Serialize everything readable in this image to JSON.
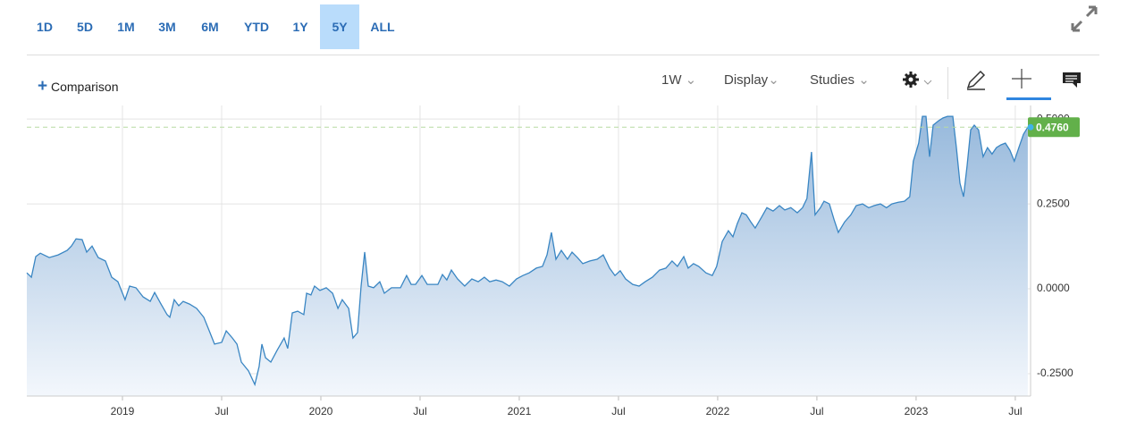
{
  "toolbar": {
    "ranges": [
      "1D",
      "5D",
      "1M",
      "3M",
      "6M",
      "YTD",
      "1Y",
      "5Y",
      "ALL"
    ],
    "selected": "5Y",
    "comparison": "Comparison",
    "interval": "1W",
    "display": "Display",
    "studies": "Studies"
  },
  "chart_data": {
    "type": "area",
    "color": "#3a86c3",
    "x": [
      2018.518,
      2018.541,
      2018.563,
      2018.586,
      2018.631,
      2018.676,
      2018.721,
      2018.743,
      2018.766,
      2018.797,
      2018.82,
      2018.847,
      2018.878,
      2018.914,
      2018.946,
      2018.977,
      2019.013,
      2019.036,
      2019.068,
      2019.104,
      2019.14,
      2019.162,
      2019.194,
      2019.225,
      2019.239,
      2019.261,
      2019.284,
      2019.306,
      2019.338,
      2019.374,
      2019.41,
      2019.441,
      2019.464,
      2019.5,
      2019.523,
      2019.554,
      2019.577,
      2019.599,
      2019.635,
      2019.667,
      2019.689,
      2019.703,
      2019.721,
      2019.748,
      2019.779,
      2019.815,
      2019.833,
      2019.856,
      2019.883,
      2019.914,
      2019.928,
      2019.95,
      2019.968,
      2019.995,
      2020.027,
      2020.059,
      2020.086,
      2020.108,
      2020.14,
      2020.162,
      2020.185,
      2020.203,
      2020.221,
      2020.239,
      2020.266,
      2020.297,
      2020.32,
      2020.356,
      2020.401,
      2020.432,
      2020.455,
      2020.477,
      2020.509,
      2020.536,
      2020.59,
      2020.613,
      2020.635,
      2020.658,
      2020.689,
      2020.725,
      2020.761,
      2020.793,
      2020.824,
      2020.851,
      2020.883,
      2020.914,
      2020.95,
      2020.986,
      2021.018,
      2021.05,
      2021.086,
      2021.117,
      2021.14,
      2021.162,
      2021.185,
      2021.212,
      2021.243,
      2021.266,
      2021.293,
      2021.32,
      2021.356,
      2021.392,
      2021.423,
      2021.455,
      2021.482,
      2021.509,
      2021.536,
      2021.572,
      2021.604,
      2021.635,
      2021.671,
      2021.707,
      2021.739,
      2021.77,
      2021.797,
      2021.829,
      2021.851,
      2021.878,
      2021.905,
      2021.941,
      2021.973,
      2021.995,
      2022.023,
      2022.054,
      2022.077,
      2022.099,
      2022.122,
      2022.144,
      2022.167,
      2022.189,
      2022.221,
      2022.248,
      2022.279,
      2022.311,
      2022.338,
      2022.369,
      2022.401,
      2022.428,
      2022.45,
      2022.473,
      2022.491,
      2022.518,
      2022.536,
      2022.563,
      2022.586,
      2022.608,
      2022.64,
      2022.671,
      2022.698,
      2022.73,
      2022.761,
      2022.788,
      2022.82,
      2022.851,
      2022.878,
      2022.91,
      2022.941,
      2022.968,
      2022.986,
      2023.013,
      2023.032,
      2023.05,
      2023.068,
      2023.086,
      2023.113,
      2023.135,
      2023.158,
      2023.185,
      2023.203,
      2023.221,
      2023.239,
      2023.257,
      2023.275,
      2023.293,
      2023.315,
      2023.338,
      2023.36,
      2023.383,
      2023.405,
      2023.428,
      2023.45,
      2023.473,
      2023.495,
      2023.518,
      2023.541,
      2023.563
    ],
    "values": [
      0.047,
      0.034,
      0.095,
      0.105,
      0.092,
      0.1,
      0.113,
      0.126,
      0.147,
      0.145,
      0.108,
      0.126,
      0.092,
      0.082,
      0.034,
      0.021,
      -0.032,
      0.008,
      0.003,
      -0.024,
      -0.037,
      -0.011,
      -0.045,
      -0.076,
      -0.084,
      -0.032,
      -0.05,
      -0.037,
      -0.045,
      -0.058,
      -0.084,
      -0.129,
      -0.163,
      -0.158,
      -0.124,
      -0.145,
      -0.163,
      -0.216,
      -0.242,
      -0.282,
      -0.229,
      -0.163,
      -0.203,
      -0.216,
      -0.182,
      -0.145,
      -0.176,
      -0.071,
      -0.066,
      -0.076,
      -0.013,
      -0.018,
      0.008,
      -0.005,
      0.003,
      -0.013,
      -0.058,
      -0.032,
      -0.058,
      -0.145,
      -0.129,
      0.008,
      0.108,
      0.008,
      0.003,
      0.021,
      -0.013,
      0.003,
      0.003,
      0.039,
      0.013,
      0.013,
      0.039,
      0.013,
      0.013,
      0.042,
      0.026,
      0.055,
      0.029,
      0.008,
      0.029,
      0.021,
      0.034,
      0.021,
      0.026,
      0.021,
      0.008,
      0.029,
      0.039,
      0.047,
      0.061,
      0.066,
      0.1,
      0.166,
      0.087,
      0.113,
      0.087,
      0.108,
      0.092,
      0.074,
      0.082,
      0.087,
      0.1,
      0.061,
      0.039,
      0.053,
      0.029,
      0.013,
      0.008,
      0.021,
      0.034,
      0.055,
      0.061,
      0.082,
      0.066,
      0.095,
      0.061,
      0.074,
      0.066,
      0.047,
      0.039,
      0.066,
      0.139,
      0.171,
      0.153,
      0.192,
      0.224,
      0.218,
      0.197,
      0.179,
      0.211,
      0.239,
      0.229,
      0.245,
      0.232,
      0.239,
      0.224,
      0.239,
      0.266,
      0.403,
      0.218,
      0.239,
      0.258,
      0.25,
      0.205,
      0.166,
      0.197,
      0.218,
      0.245,
      0.25,
      0.239,
      0.245,
      0.25,
      0.239,
      0.25,
      0.255,
      0.258,
      0.271,
      0.376,
      0.429,
      0.508,
      0.508,
      0.389,
      0.482,
      0.495,
      0.503,
      0.508,
      0.508,
      0.416,
      0.311,
      0.271,
      0.363,
      0.468,
      0.482,
      0.468,
      0.389,
      0.416,
      0.397,
      0.416,
      0.424,
      0.429,
      0.408,
      0.376,
      0.416,
      0.455,
      0.476
    ],
    "xlim": [
      2018.518,
      2023.577
    ],
    "ylim": [
      -0.316,
      0.54
    ],
    "xticks": [
      {
        "value": 2019,
        "label": "2019"
      },
      {
        "value": 2019.5,
        "label": "Jul"
      },
      {
        "value": 2020,
        "label": "2020"
      },
      {
        "value": 2020.5,
        "label": "Jul"
      },
      {
        "value": 2021,
        "label": "2021"
      },
      {
        "value": 2021.5,
        "label": "Jul"
      },
      {
        "value": 2022,
        "label": "2022"
      },
      {
        "value": 2022.5,
        "label": "Jul"
      },
      {
        "value": 2023,
        "label": "2023"
      },
      {
        "value": 2023.5,
        "label": "Jul"
      }
    ],
    "yticks": [
      {
        "value": -0.25,
        "label": "-0.2500"
      },
      {
        "value": 0,
        "label": "0.0000"
      },
      {
        "value": 0.25,
        "label": "0.2500"
      },
      {
        "value": 0.5,
        "label": "0.5000"
      }
    ],
    "last_value": {
      "value": 0.476,
      "label": "0.4760"
    },
    "grid": true
  }
}
